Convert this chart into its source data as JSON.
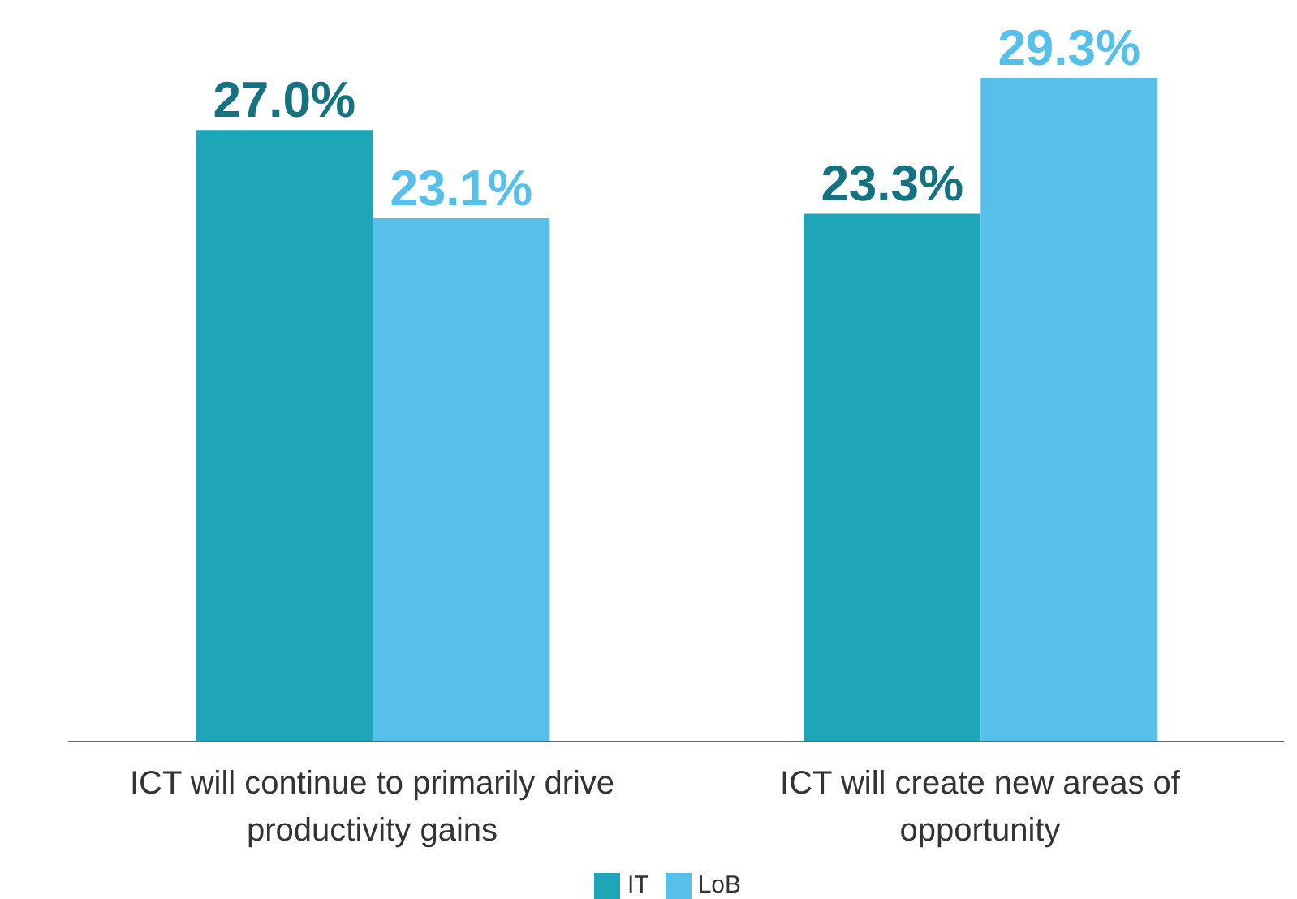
{
  "chart_data": {
    "type": "bar",
    "categories": [
      "ICT will continue to primarily drive productivity gains",
      "ICT will create new areas of opportunity"
    ],
    "series": [
      {
        "name": "IT",
        "color": "#1ea5b8",
        "values": [
          27.0,
          23.3
        ],
        "value_labels": [
          "27.0%",
          "23.3%"
        ]
      },
      {
        "name": "LoB",
        "color": "#56bfea",
        "values": [
          23.1,
          29.3
        ],
        "value_labels": [
          "23.1%",
          "29.3%"
        ]
      }
    ],
    "legend": "bottom"
  }
}
